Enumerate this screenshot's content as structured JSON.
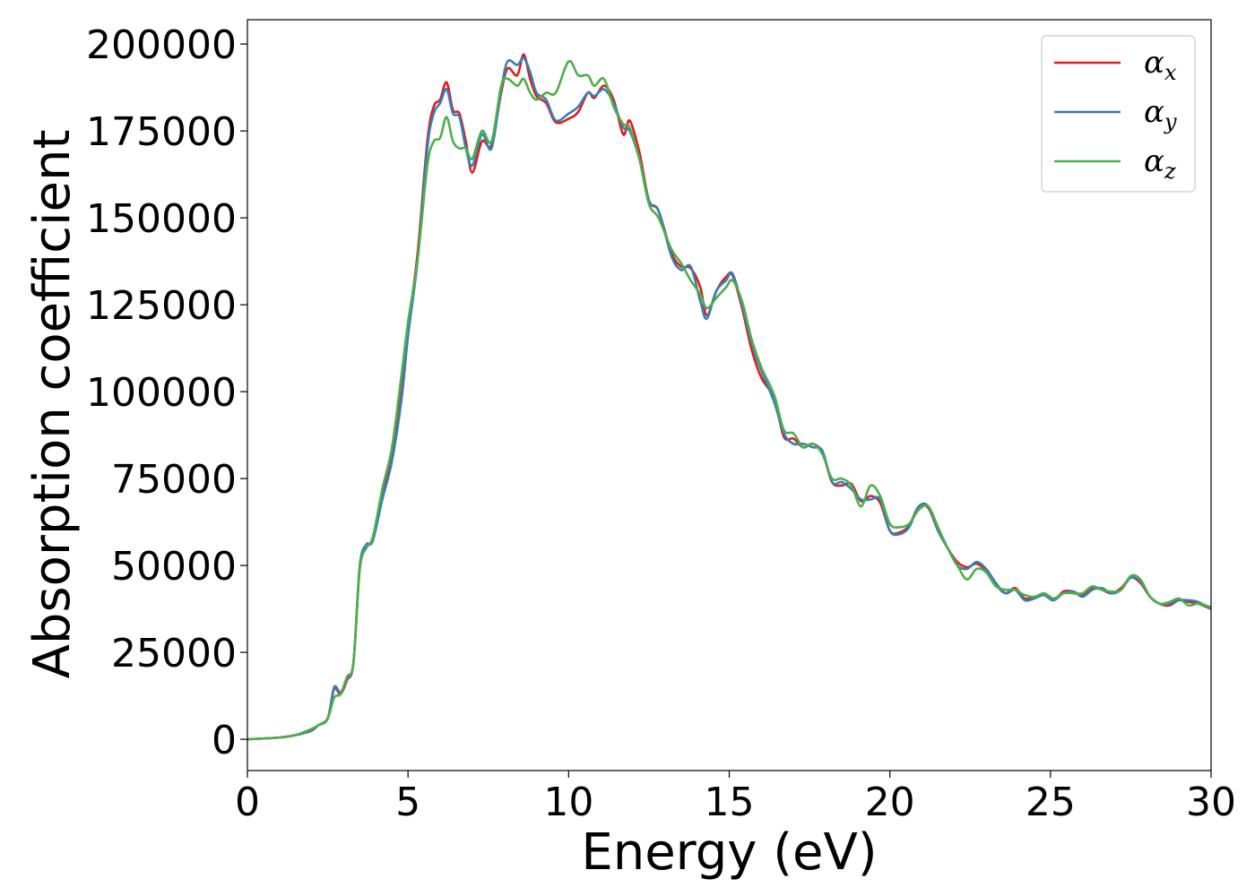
{
  "chart_data": {
    "type": "line",
    "title": "",
    "xlabel": "Energy (eV)",
    "ylabel": "Absorption coefficient",
    "xlim": [
      0,
      30
    ],
    "ylim": [
      -9000,
      207000
    ],
    "xticks": [
      0,
      5,
      10,
      15,
      20,
      25,
      30
    ],
    "xtick_labels": [
      "0",
      "5",
      "10",
      "15",
      "20",
      "25",
      "30"
    ],
    "yticks": [
      0,
      25000,
      50000,
      75000,
      100000,
      125000,
      150000,
      175000,
      200000
    ],
    "ytick_labels": [
      "0",
      "25000",
      "50000",
      "75000",
      "100000",
      "125000",
      "150000",
      "175000",
      "200000"
    ],
    "grid": false,
    "legend_position": "top-right",
    "series": [
      {
        "name": "α_x",
        "symbol": "α",
        "subscript": "x",
        "color": "#e41a1c",
        "x": [
          0,
          1,
          1.5,
          2,
          2.2,
          2.5,
          2.7,
          2.9,
          3.1,
          3.3,
          3.5,
          3.7,
          3.9,
          4.2,
          4.5,
          4.8,
          5.0,
          5.3,
          5.6,
          5.8,
          6.0,
          6.2,
          6.4,
          6.6,
          6.8,
          7.0,
          7.3,
          7.6,
          7.9,
          8.1,
          8.4,
          8.6,
          8.8,
          9.0,
          9.3,
          9.6,
          10.0,
          10.3,
          10.6,
          10.8,
          11.1,
          11.4,
          11.7,
          11.9,
          12.2,
          12.5,
          12.8,
          13.2,
          13.5,
          13.8,
          14.1,
          14.3,
          14.6,
          14.9,
          15.1,
          15.4,
          15.7,
          16.0,
          16.4,
          16.7,
          17.0,
          17.3,
          17.6,
          17.9,
          18.2,
          18.5,
          18.8,
          19.1,
          19.4,
          19.7,
          20.0,
          20.3,
          20.6,
          20.9,
          21.2,
          21.5,
          21.8,
          22.1,
          22.4,
          22.7,
          23.0,
          23.3,
          23.6,
          23.9,
          24.2,
          24.5,
          24.8,
          25.1,
          25.4,
          25.7,
          26.0,
          26.3,
          26.6,
          26.9,
          27.2,
          27.5,
          27.8,
          28.1,
          28.4,
          28.7,
          29.0,
          29.3,
          29.6,
          30.0
        ],
        "y": [
          0,
          500,
          1200,
          2500,
          4000,
          6000,
          14500,
          13000,
          17000,
          22000,
          50000,
          55000,
          58000,
          70000,
          82000,
          100000,
          118000,
          140000,
          172000,
          182000,
          184000,
          189000,
          181000,
          180000,
          172000,
          163000,
          172000,
          171000,
          186000,
          193000,
          191000,
          197000,
          190000,
          185000,
          183000,
          177500,
          178500,
          180500,
          186000,
          184500,
          188000,
          184000,
          174000,
          178000,
          169000,
          155000,
          152000,
          140000,
          136000,
          135500,
          130000,
          122000,
          129000,
          133000,
          133500,
          124000,
          112000,
          104000,
          98000,
          87000,
          86500,
          84000,
          85000,
          82500,
          74000,
          73000,
          73500,
          68500,
          70000,
          68000,
          60000,
          59500,
          61500,
          67000,
          66500,
          60000,
          55000,
          51000,
          49500,
          50500,
          48500,
          44500,
          42000,
          43500,
          40500,
          41000,
          41500,
          40000,
          42500,
          42500,
          41500,
          43500,
          43000,
          42000,
          43500,
          46500,
          45000,
          41000,
          39000,
          38500,
          40000,
          39500,
          39000,
          37500
        ]
      },
      {
        "name": "α_y",
        "symbol": "α",
        "subscript": "y",
        "color": "#377eb8",
        "x": [
          0,
          1,
          1.5,
          2,
          2.2,
          2.5,
          2.7,
          2.9,
          3.1,
          3.3,
          3.5,
          3.7,
          3.9,
          4.2,
          4.5,
          4.8,
          5.0,
          5.3,
          5.6,
          5.8,
          6.0,
          6.2,
          6.4,
          6.6,
          6.8,
          7.0,
          7.3,
          7.6,
          7.9,
          8.1,
          8.4,
          8.6,
          8.8,
          9.0,
          9.3,
          9.6,
          10.0,
          10.3,
          10.6,
          10.8,
          11.1,
          11.4,
          11.7,
          11.9,
          12.2,
          12.5,
          12.8,
          13.2,
          13.5,
          13.8,
          14.1,
          14.3,
          14.6,
          14.9,
          15.1,
          15.4,
          15.7,
          16.0,
          16.4,
          16.7,
          17.0,
          17.3,
          17.6,
          17.9,
          18.2,
          18.5,
          18.8,
          19.1,
          19.4,
          19.7,
          20.0,
          20.3,
          20.6,
          20.9,
          21.2,
          21.5,
          21.8,
          22.1,
          22.4,
          22.7,
          23.0,
          23.3,
          23.6,
          23.9,
          24.2,
          24.5,
          24.8,
          25.1,
          25.4,
          25.7,
          26.0,
          26.3,
          26.6,
          26.9,
          27.2,
          27.5,
          27.8,
          28.1,
          28.4,
          28.7,
          29.0,
          29.3,
          29.6,
          30.0
        ],
        "y": [
          0,
          500,
          1200,
          2600,
          4000,
          6000,
          15000,
          13500,
          17500,
          22000,
          50000,
          56000,
          57000,
          69000,
          80000,
          98000,
          116000,
          138000,
          170000,
          180000,
          183000,
          187000,
          180000,
          179000,
          170000,
          165000,
          174000,
          170000,
          187000,
          195000,
          194000,
          196000,
          192000,
          186000,
          184000,
          178000,
          180000,
          182000,
          186000,
          185000,
          187000,
          183000,
          176000,
          175000,
          167000,
          155000,
          152000,
          139000,
          135000,
          136000,
          126000,
          121000,
          129000,
          132000,
          134000,
          125000,
          114000,
          106000,
          97000,
          88000,
          85000,
          85000,
          84000,
          83000,
          74000,
          74000,
          72000,
          69000,
          69000,
          69000,
          60000,
          59000,
          61000,
          67000,
          67000,
          60000,
          55000,
          50000,
          49000,
          51000,
          49000,
          45000,
          42000,
          43000,
          40000,
          40500,
          41500,
          40000,
          42000,
          42500,
          41000,
          43000,
          43500,
          42000,
          43000,
          46500,
          45500,
          41000,
          39000,
          39000,
          40000,
          40000,
          39500,
          37500
        ]
      },
      {
        "name": "α_z",
        "symbol": "α",
        "subscript": "z",
        "color": "#4daf4a",
        "x": [
          0,
          1,
          1.5,
          2,
          2.2,
          2.5,
          2.7,
          2.9,
          3.1,
          3.3,
          3.5,
          3.7,
          3.9,
          4.2,
          4.5,
          4.8,
          5.0,
          5.3,
          5.6,
          5.8,
          6.0,
          6.2,
          6.4,
          6.6,
          6.8,
          7.0,
          7.3,
          7.6,
          7.9,
          8.1,
          8.4,
          8.6,
          8.8,
          9.0,
          9.3,
          9.6,
          10.0,
          10.3,
          10.6,
          10.8,
          11.1,
          11.4,
          11.7,
          11.9,
          12.2,
          12.5,
          12.8,
          13.2,
          13.5,
          13.8,
          14.1,
          14.3,
          14.6,
          14.9,
          15.1,
          15.4,
          15.7,
          16.0,
          16.4,
          16.7,
          17.0,
          17.3,
          17.6,
          17.9,
          18.2,
          18.5,
          18.8,
          19.1,
          19.4,
          19.7,
          20.0,
          20.3,
          20.6,
          20.9,
          21.2,
          21.5,
          21.8,
          22.1,
          22.4,
          22.7,
          23.0,
          23.3,
          23.6,
          23.9,
          24.2,
          24.5,
          24.8,
          25.1,
          25.4,
          25.7,
          26.0,
          26.3,
          26.6,
          26.9,
          27.2,
          27.5,
          27.8,
          28.1,
          28.4,
          28.7,
          29.0,
          29.3,
          29.6,
          30.0
        ],
        "y": [
          0,
          500,
          1200,
          3000,
          4000,
          6000,
          12000,
          13000,
          18000,
          22000,
          49000,
          55000,
          58000,
          72000,
          84000,
          105000,
          120000,
          138000,
          165000,
          172000,
          173000,
          179000,
          172000,
          170000,
          170000,
          167000,
          175000,
          172000,
          188000,
          190000,
          188000,
          190000,
          186000,
          184000,
          186000,
          186000,
          195000,
          191000,
          191000,
          188000,
          190000,
          182000,
          177000,
          176000,
          167000,
          154000,
          150000,
          141000,
          137000,
          132000,
          128000,
          124000,
          127000,
          130000,
          132000,
          126000,
          115000,
          107000,
          99000,
          89000,
          88000,
          84000,
          85000,
          82000,
          75000,
          75000,
          73000,
          67000,
          73000,
          70000,
          62000,
          61000,
          62000,
          66000,
          67000,
          61000,
          55000,
          50000,
          46000,
          49000,
          48000,
          44000,
          43000,
          43000,
          41500,
          41000,
          42000,
          40500,
          42000,
          42000,
          42000,
          44000,
          43000,
          42500,
          43000,
          47000,
          46000,
          41000,
          39000,
          39500,
          40500,
          38500,
          39000,
          38000
        ]
      }
    ]
  }
}
